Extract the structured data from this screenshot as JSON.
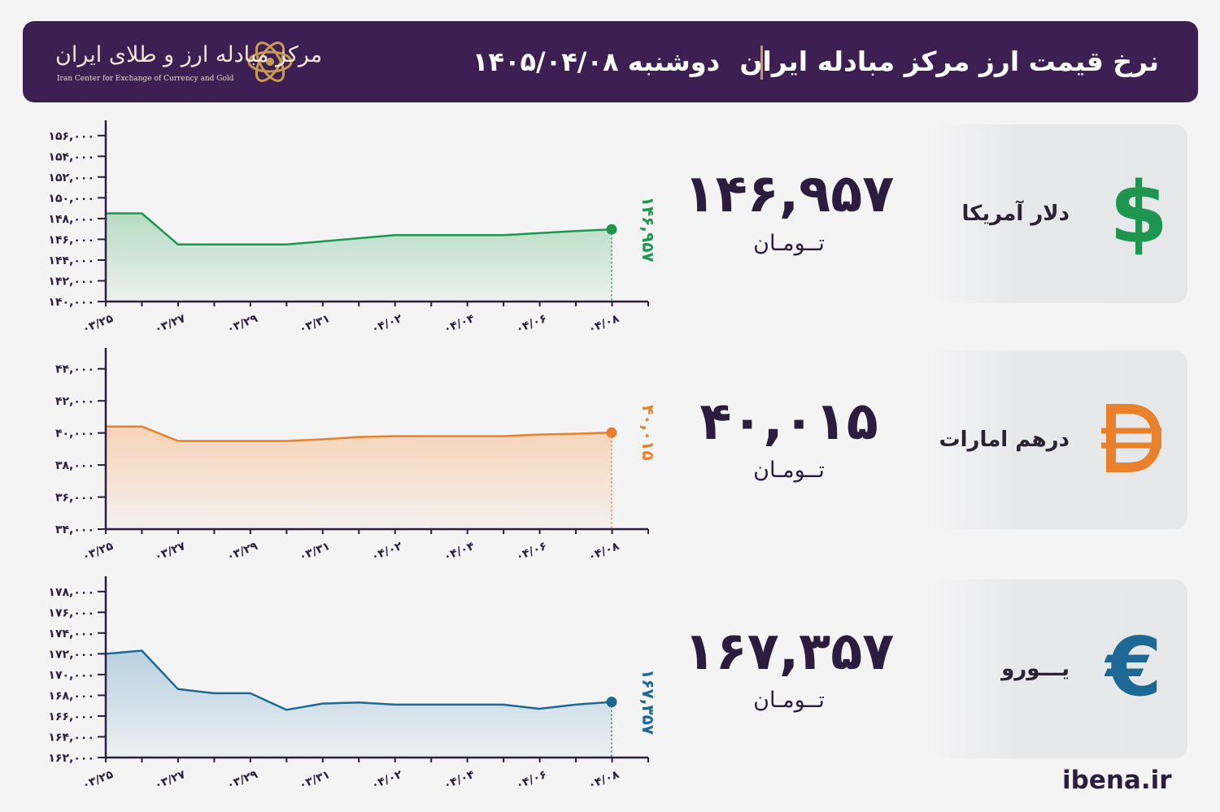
{
  "header": {
    "title": "نرخ قیمت ارز مرکز مبادله ایران",
    "date": "دوشنبه ۱۴۰۵/۰۴/۰۸",
    "logo_fa": "مرکز مبادله ارز و طلای ایران",
    "logo_en": "Iran Center for Exchange of Currency and Gold"
  },
  "unit_label": "تــومـان",
  "site": "ibena.ir",
  "currencies": [
    {
      "name": "دلار آمریکا",
      "price": "۱۴۶,۹۵۷",
      "symbol_icon": "dollar-icon",
      "color": "#1e9650"
    },
    {
      "name": "درهم امارات",
      "price": "۴۰,۰۱۵",
      "symbol_icon": "dirham-icon",
      "color": "#e8802c"
    },
    {
      "name": "یـــورو",
      "price": "۱۶۷,۳۵۷",
      "symbol_icon": "euro-icon",
      "color": "#1d6894"
    }
  ],
  "chart_data": [
    {
      "type": "area",
      "title": "",
      "x": [
        "۰۳/۲۵",
        "۰۳/۲۶",
        "۰۳/۲۷",
        "۰۳/۲۸",
        "۰۳/۲۹",
        "۰۳/۳۰",
        "۰۳/۳۱",
        "۰۴/۰۱",
        "۰۴/۰۲",
        "۰۴/۰۳",
        "۰۴/۰۴",
        "۰۴/۰۵",
        "۰۴/۰۶",
        "۰۴/۰۷",
        "۰۴/۰۸"
      ],
      "xtick_labels": [
        "۰۳/۲۵",
        "۰۳/۲۷",
        "۰۳/۲۹",
        "۰۳/۳۱",
        "۰۴/۰۲",
        "۰۴/۰۴",
        "۰۴/۰۶",
        "۰۴/۰۸"
      ],
      "values": [
        148500,
        148500,
        145500,
        145500,
        145500,
        145500,
        145800,
        146100,
        146400,
        146400,
        146400,
        146400,
        146600,
        146800,
        146957
      ],
      "ylim": [
        140000,
        157000
      ],
      "yticks": [
        140000,
        142000,
        144000,
        146000,
        148000,
        150000,
        152000,
        154000,
        156000
      ],
      "ytick_labels": [
        "۱۴۰,۰۰۰",
        "۱۴۲,۰۰۰",
        "۱۴۴,۰۰۰",
        "۱۴۶,۰۰۰",
        "۱۴۸,۰۰۰",
        "۱۵۰,۰۰۰",
        "۱۵۲,۰۰۰",
        "۱۵۴,۰۰۰",
        "۱۵۶,۰۰۰"
      ],
      "last_label": "۱۴۶,۹۵۷",
      "color": "#1e9650",
      "fill_color": "#b6dcc2",
      "grid": false
    },
    {
      "type": "area",
      "title": "",
      "x": [
        "۰۳/۲۵",
        "۰۳/۲۶",
        "۰۳/۲۷",
        "۰۳/۲۸",
        "۰۳/۲۹",
        "۰۳/۳۰",
        "۰۳/۳۱",
        "۰۴/۰۱",
        "۰۴/۰۲",
        "۰۴/۰۳",
        "۰۴/۰۴",
        "۰۴/۰۵",
        "۰۴/۰۶",
        "۰۴/۰۷",
        "۰۴/۰۸"
      ],
      "xtick_labels": [
        "۰۳/۲۵",
        "۰۳/۲۷",
        "۰۳/۲۹",
        "۰۳/۳۱",
        "۰۴/۰۲",
        "۰۴/۰۴",
        "۰۴/۰۶",
        "۰۴/۰۸"
      ],
      "values": [
        40400,
        40400,
        39500,
        39500,
        39500,
        39500,
        39600,
        39750,
        39800,
        39800,
        39800,
        39800,
        39900,
        39950,
        40015
      ],
      "ylim": [
        34000,
        45000
      ],
      "yticks": [
        34000,
        36000,
        38000,
        40000,
        42000,
        44000
      ],
      "ytick_labels": [
        "۳۴,۰۰۰",
        "۳۶,۰۰۰",
        "۳۸,۰۰۰",
        "۴۰,۰۰۰",
        "۴۲,۰۰۰",
        "۴۴,۰۰۰"
      ],
      "last_label": "۴۰,۰۱۵",
      "color": "#e8802c",
      "fill_color": "#f7d3b8",
      "grid": false
    },
    {
      "type": "area",
      "title": "",
      "x": [
        "۰۳/۲۵",
        "۰۳/۲۶",
        "۰۳/۲۷",
        "۰۳/۲۸",
        "۰۳/۲۹",
        "۰۳/۳۰",
        "۰۳/۳۱",
        "۰۴/۰۱",
        "۰۴/۰۲",
        "۰۴/۰۳",
        "۰۴/۰۴",
        "۰۴/۰۵",
        "۰۴/۰۶",
        "۰۴/۰۷",
        "۰۴/۰۸"
      ],
      "xtick_labels": [
        "۰۳/۲۵",
        "۰۳/۲۷",
        "۰۳/۲۹",
        "۰۳/۳۱",
        "۰۴/۰۲",
        "۰۴/۰۴",
        "۰۴/۰۶",
        "۰۴/۰۸"
      ],
      "values": [
        172000,
        172300,
        168600,
        168200,
        168200,
        166600,
        167200,
        167300,
        167100,
        167100,
        167100,
        167100,
        166700,
        167100,
        167357
      ],
      "ylim": [
        162000,
        179000
      ],
      "yticks": [
        162000,
        164000,
        166000,
        168000,
        170000,
        172000,
        174000,
        176000,
        178000
      ],
      "ytick_labels": [
        "۱۶۲,۰۰۰",
        "۱۶۴,۰۰۰",
        "۱۶۶,۰۰۰",
        "۱۶۸,۰۰۰",
        "۱۷۰,۰۰۰",
        "۱۷۲,۰۰۰",
        "۱۷۴,۰۰۰",
        "۱۷۶,۰۰۰",
        "۱۷۸,۰۰۰"
      ],
      "last_label": "۱۶۷,۳۵۷",
      "color": "#1d6894",
      "fill_color": "#b8d0e0",
      "grid": false
    }
  ]
}
